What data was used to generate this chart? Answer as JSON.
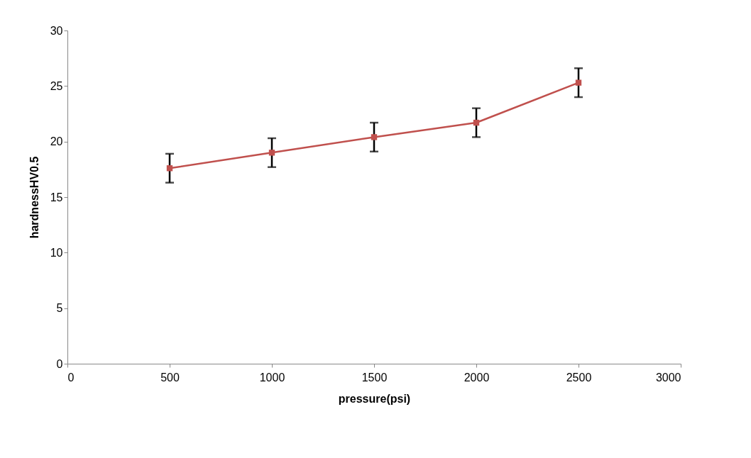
{
  "chart_data": {
    "type": "line",
    "xlabel": "pressure(psi)",
    "ylabel": "hardnessHV0.5",
    "x": [
      500,
      1000,
      1500,
      2000,
      2500
    ],
    "series": [
      {
        "color": "#c0504d",
        "values": [
          17.6,
          19.0,
          20.4,
          21.7,
          25.3
        ],
        "errors": [
          1.3,
          1.3,
          1.3,
          1.3,
          1.3
        ]
      }
    ],
    "xlim": [
      0,
      3000
    ],
    "xticks": [
      0,
      500,
      1000,
      1500,
      2000,
      2500,
      3000
    ],
    "ylim": [
      0,
      30
    ],
    "yticks": [
      0,
      5,
      10,
      15,
      20,
      25,
      30
    ],
    "grid": false,
    "legend": false,
    "marker": "square",
    "line_style": "solid"
  }
}
